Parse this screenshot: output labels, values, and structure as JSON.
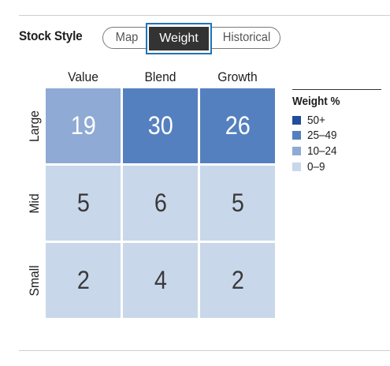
{
  "section": {
    "title": "Stock Style"
  },
  "tabs": [
    {
      "label": "Map",
      "active": false
    },
    {
      "label": "Weight",
      "active": true
    },
    {
      "label": "Historical",
      "active": false
    }
  ],
  "grid": {
    "columns": [
      "Value",
      "Blend",
      "Growth"
    ],
    "rows": [
      "Large",
      "Mid",
      "Small"
    ],
    "cells": [
      [
        {
          "value": "19",
          "bg": "#8faad4",
          "color": "#ffffff"
        },
        {
          "value": "30",
          "bg": "#5580bf",
          "color": "#ffffff"
        },
        {
          "value": "26",
          "bg": "#5580bf",
          "color": "#ffffff"
        }
      ],
      [
        {
          "value": "5",
          "bg": "#c9d7ea",
          "color": "#3a3a3a"
        },
        {
          "value": "6",
          "bg": "#c9d7ea",
          "color": "#3a3a3a"
        },
        {
          "value": "5",
          "bg": "#c9d7ea",
          "color": "#3a3a3a"
        }
      ],
      [
        {
          "value": "2",
          "bg": "#c9d7ea",
          "color": "#3a3a3a"
        },
        {
          "value": "4",
          "bg": "#c9d7ea",
          "color": "#3a3a3a"
        },
        {
          "value": "2",
          "bg": "#c9d7ea",
          "color": "#3a3a3a"
        }
      ]
    ]
  },
  "legend": {
    "title": "Weight %",
    "items": [
      {
        "label": "50+",
        "color": "#1f4e9a"
      },
      {
        "label": "25–49",
        "color": "#5580bf"
      },
      {
        "label": "10–24",
        "color": "#8faad4"
      },
      {
        "label": "0–9",
        "color": "#c9d7ea"
      }
    ]
  }
}
